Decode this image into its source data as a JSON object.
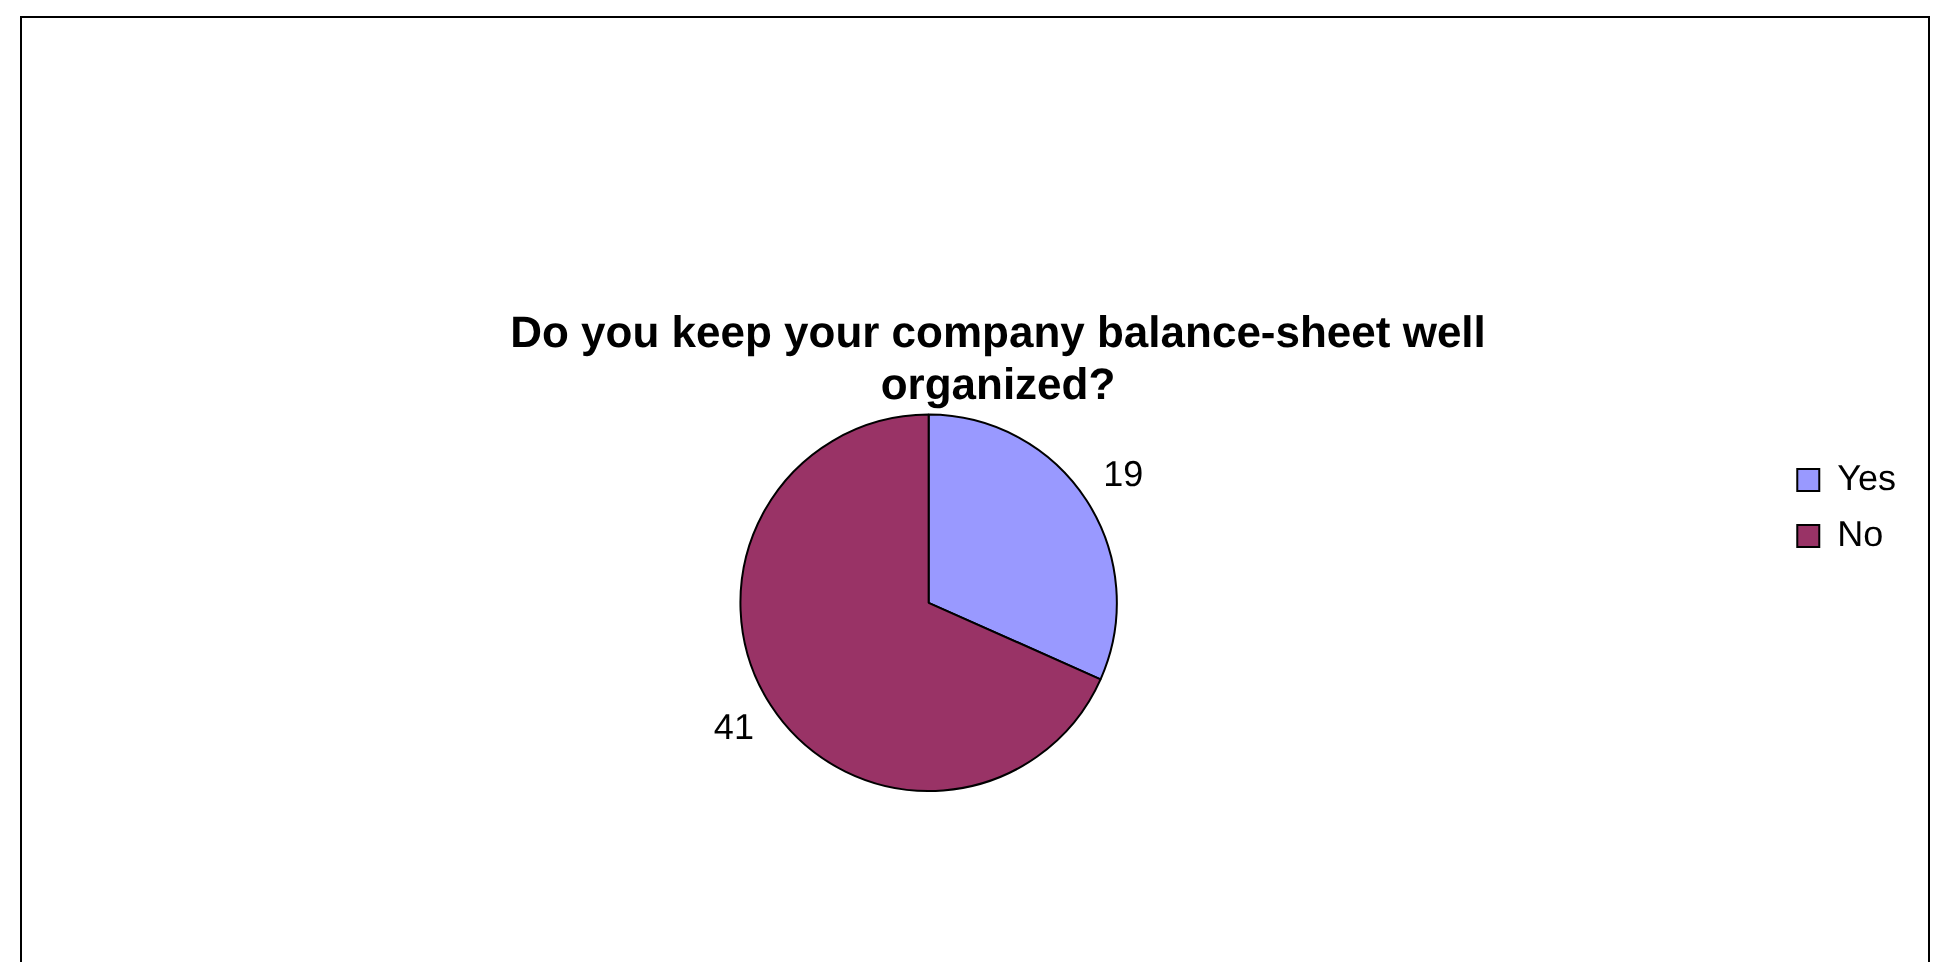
{
  "chart_data": {
    "type": "pie",
    "title": "Do you keep your company balance-sheet well organized?",
    "categories": [
      "Yes",
      "No"
    ],
    "values": [
      19,
      41
    ],
    "colors": [
      "#9999ff",
      "#993366"
    ],
    "data_labels": true,
    "legend": "right"
  }
}
